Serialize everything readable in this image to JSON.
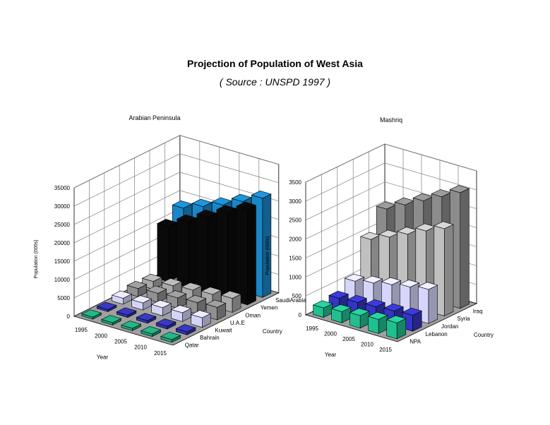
{
  "title": "Projection of Population of West Asia",
  "subtitle": "( Source : UNSPD 1997 )",
  "colors": {
    "grid": "#808080",
    "wall": "#ffffff",
    "floor": "#a0a0a0"
  },
  "chart_data": [
    {
      "type": "bar",
      "subtype": "3d-column",
      "title": "Arabian Peninsula",
      "xlabel": "Year",
      "ylabel": "Population (000s)",
      "zlabel": "Country",
      "ylim": [
        0,
        35000
      ],
      "yticks": [
        "0",
        "5000",
        "10000",
        "15000",
        "20000",
        "25000",
        "30000",
        "35000"
      ],
      "categories": [
        "1995",
        "2000",
        "2005",
        "2010",
        "2015"
      ],
      "series": [
        {
          "name": "Qatar",
          "color": "#1fa37a",
          "values": [
            550,
            600,
            650,
            700,
            750
          ]
        },
        {
          "name": "Bahrain",
          "color": "#3333b0",
          "values": [
            580,
            640,
            700,
            760,
            810
          ]
        },
        {
          "name": "Kuwait",
          "color": "#d4d4f8",
          "values": [
            1600,
            1900,
            2200,
            2400,
            2600
          ]
        },
        {
          "name": "U.A.E",
          "color": "#909090",
          "values": [
            2200,
            2500,
            2800,
            3100,
            3400
          ]
        },
        {
          "name": "Oman",
          "color": "#a8a8a8",
          "values": [
            2100,
            2500,
            2900,
            3300,
            3800
          ]
        },
        {
          "name": "Yemen",
          "color": "#0a0a0a",
          "values": [
            15000,
            17800,
            20700,
            23500,
            26000
          ]
        },
        {
          "name": "SaudiArabia",
          "color": "#1a86c8",
          "values": [
            18000,
            20000,
            22000,
            24500,
            27000
          ]
        }
      ]
    },
    {
      "type": "bar",
      "subtype": "3d-column",
      "title": "Mashriq",
      "xlabel": "Year",
      "ylabel": "Population (000s)",
      "zlabel": "Country",
      "ylim": [
        0,
        3500
      ],
      "yticks": [
        "0",
        "500",
        "1000",
        "1500",
        "2000",
        "2500",
        "3000",
        "3500"
      ],
      "categories": [
        "1995",
        "2000",
        "2005",
        "2010",
        "2015"
      ],
      "series": [
        {
          "name": "NPA",
          "color": "#21bf8f",
          "values": [
            250,
            290,
            330,
            370,
            420
          ]
        },
        {
          "name": "Lebanon",
          "color": "#3535c4",
          "values": [
            300,
            330,
            360,
            390,
            420
          ]
        },
        {
          "name": "Jordan",
          "color": "#d6d6fc",
          "values": [
            550,
            640,
            740,
            820,
            900
          ]
        },
        {
          "name": "Syria",
          "color": "#c0c0c0",
          "values": [
            1450,
            1650,
            1870,
            2100,
            2300
          ]
        },
        {
          "name": "Iraq",
          "color": "#8c8c8c",
          "values": [
            2050,
            2300,
            2550,
            2800,
            3050
          ]
        }
      ]
    }
  ]
}
